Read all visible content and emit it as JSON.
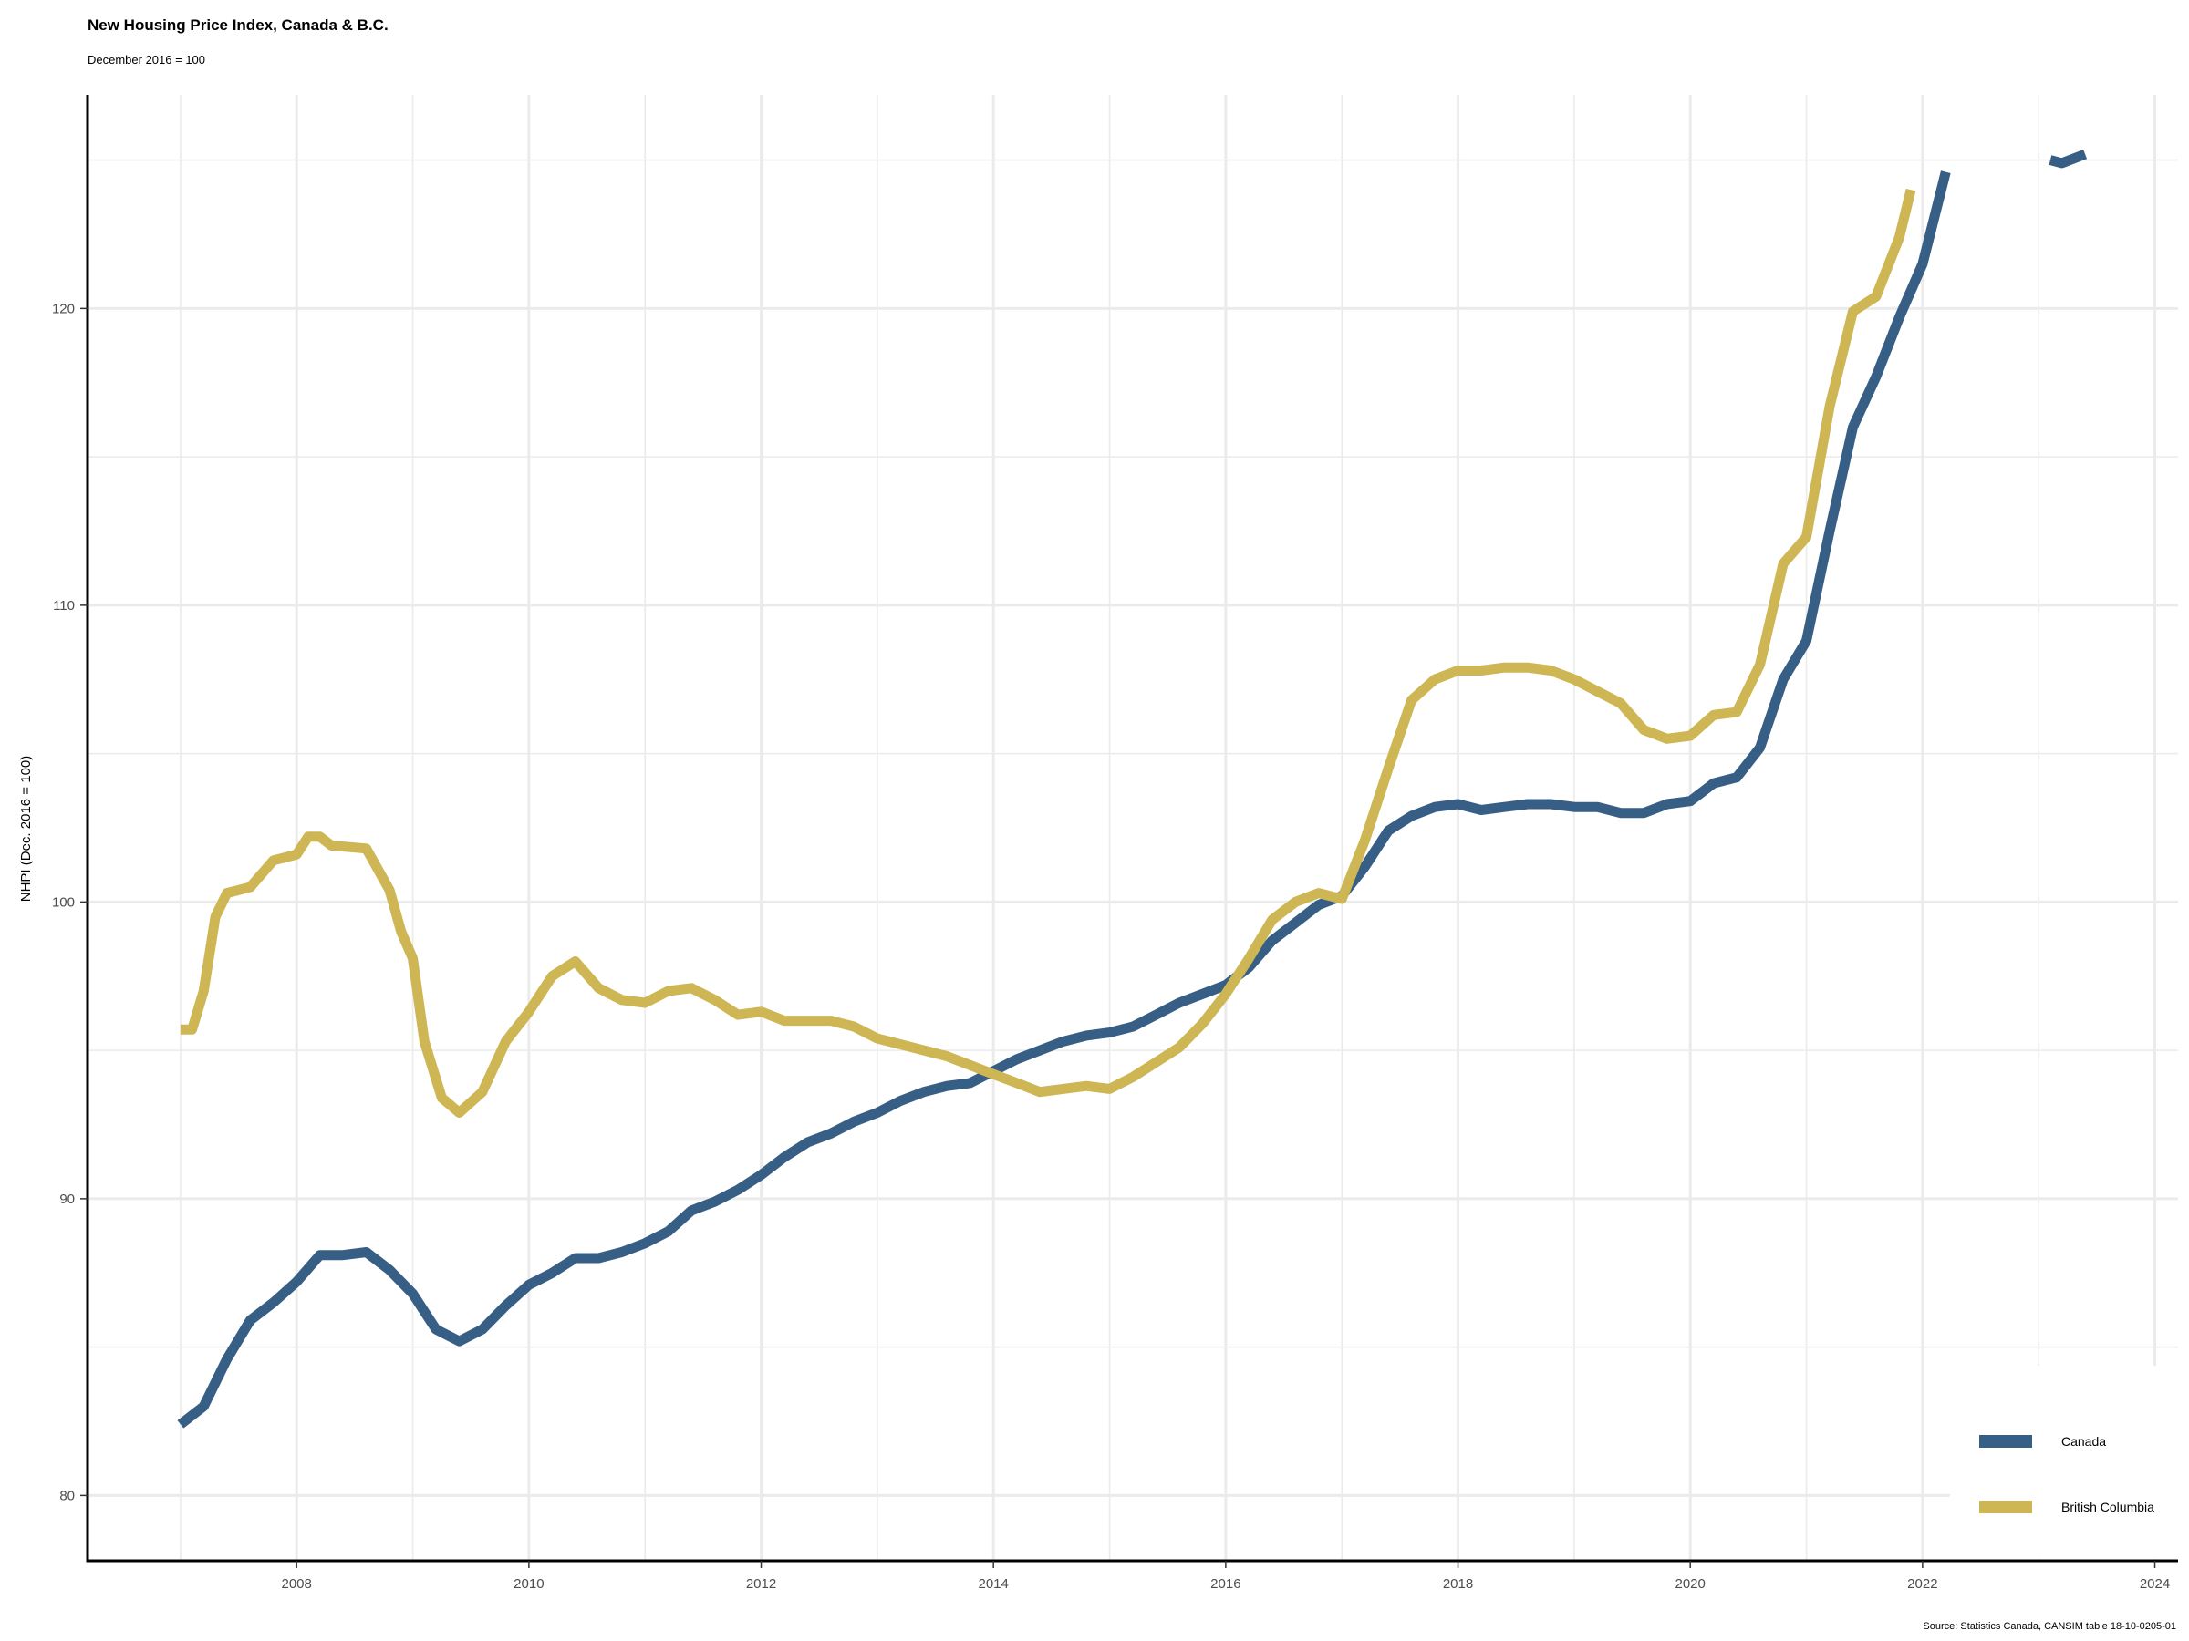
{
  "title": "New Housing Price Index, Canada & B.C.",
  "subtitle": "December 2016 = 100",
  "caption": "Source: Statistics Canada, CANSIM table 18-10-0205-01",
  "chart_data": {
    "type": "line",
    "title": "New Housing Price Index, Canada & B.C.",
    "subtitle": "December 2016 = 100",
    "xlabel": "",
    "ylabel": "NHPI (Dec. 2016 = 100)",
    "xlim": [
      2006.2,
      2024.2
    ],
    "ylim": [
      77.8,
      127.2
    ],
    "x_ticks": [
      2008,
      2010,
      2012,
      2014,
      2016,
      2018,
      2020,
      2022,
      2024
    ],
    "y_ticks": [
      80,
      90,
      100,
      110,
      120
    ],
    "grid": true,
    "legend_position": "bottom-right",
    "series": [
      {
        "name": "Canada",
        "color": "#375e84",
        "points": [
          [
            2007.0,
            82.4
          ],
          [
            2007.2,
            83.0
          ],
          [
            2007.4,
            84.6
          ],
          [
            2007.6,
            85.9
          ],
          [
            2007.8,
            86.5
          ],
          [
            2008.0,
            87.2
          ],
          [
            2008.2,
            88.1
          ],
          [
            2008.4,
            88.1
          ],
          [
            2008.6,
            88.2
          ],
          [
            2008.8,
            87.6
          ],
          [
            2009.0,
            86.8
          ],
          [
            2009.2,
            85.6
          ],
          [
            2009.4,
            85.2
          ],
          [
            2009.6,
            85.6
          ],
          [
            2009.8,
            86.4
          ],
          [
            2010.0,
            87.1
          ],
          [
            2010.2,
            87.5
          ],
          [
            2010.4,
            88.0
          ],
          [
            2010.6,
            88.0
          ],
          [
            2010.8,
            88.2
          ],
          [
            2011.0,
            88.5
          ],
          [
            2011.2,
            88.9
          ],
          [
            2011.4,
            89.6
          ],
          [
            2011.6,
            89.9
          ],
          [
            2011.8,
            90.3
          ],
          [
            2012.0,
            90.8
          ],
          [
            2012.2,
            91.4
          ],
          [
            2012.4,
            91.9
          ],
          [
            2012.6,
            92.2
          ],
          [
            2012.8,
            92.6
          ],
          [
            2013.0,
            92.9
          ],
          [
            2013.2,
            93.3
          ],
          [
            2013.4,
            93.6
          ],
          [
            2013.6,
            93.8
          ],
          [
            2013.8,
            93.9
          ],
          [
            2014.0,
            94.3
          ],
          [
            2014.2,
            94.7
          ],
          [
            2014.4,
            95.0
          ],
          [
            2014.6,
            95.3
          ],
          [
            2014.8,
            95.5
          ],
          [
            2015.0,
            95.6
          ],
          [
            2015.2,
            95.8
          ],
          [
            2015.4,
            96.2
          ],
          [
            2015.6,
            96.6
          ],
          [
            2015.8,
            96.9
          ],
          [
            2016.0,
            97.2
          ],
          [
            2016.2,
            97.8
          ],
          [
            2016.4,
            98.7
          ],
          [
            2016.6,
            99.3
          ],
          [
            2016.8,
            99.9
          ],
          [
            2017.0,
            100.2
          ],
          [
            2017.2,
            101.2
          ],
          [
            2017.4,
            102.4
          ],
          [
            2017.6,
            102.9
          ],
          [
            2017.8,
            103.2
          ],
          [
            2018.0,
            103.3
          ],
          [
            2018.2,
            103.1
          ],
          [
            2018.4,
            103.2
          ],
          [
            2018.6,
            103.3
          ],
          [
            2018.8,
            103.3
          ],
          [
            2019.0,
            103.2
          ],
          [
            2019.2,
            103.2
          ],
          [
            2019.4,
            103.0
          ],
          [
            2019.6,
            103.0
          ],
          [
            2019.8,
            103.3
          ],
          [
            2020.0,
            103.4
          ],
          [
            2020.2,
            104.0
          ],
          [
            2020.4,
            104.2
          ],
          [
            2020.6,
            105.2
          ],
          [
            2020.8,
            107.5
          ],
          [
            2021.0,
            108.8
          ],
          [
            2021.2,
            112.5
          ],
          [
            2021.4,
            116.0
          ],
          [
            2021.6,
            117.7
          ],
          [
            2021.8,
            119.7
          ],
          [
            2022.0,
            121.5
          ],
          [
            2022.2,
            124.6
          ]
        ]
      },
      {
        "name": "British Columbia",
        "color": "#cdb653",
        "points": [
          [
            2007.0,
            95.7
          ],
          [
            2007.1,
            95.7
          ],
          [
            2007.2,
            97.0
          ],
          [
            2007.3,
            99.5
          ],
          [
            2007.4,
            100.3
          ],
          [
            2007.6,
            100.5
          ],
          [
            2007.8,
            101.4
          ],
          [
            2008.0,
            101.6
          ],
          [
            2008.1,
            102.2
          ],
          [
            2008.2,
            102.2
          ],
          [
            2008.3,
            101.9
          ],
          [
            2008.6,
            101.8
          ],
          [
            2008.8,
            100.4
          ],
          [
            2008.9,
            99.0
          ],
          [
            2009.0,
            98.1
          ],
          [
            2009.1,
            95.3
          ],
          [
            2009.25,
            93.4
          ],
          [
            2009.4,
            92.9
          ],
          [
            2009.6,
            93.6
          ],
          [
            2009.8,
            95.3
          ],
          [
            2010.0,
            96.3
          ],
          [
            2010.2,
            97.5
          ],
          [
            2010.4,
            98.0
          ],
          [
            2010.6,
            97.1
          ],
          [
            2010.8,
            96.7
          ],
          [
            2011.0,
            96.6
          ],
          [
            2011.2,
            97.0
          ],
          [
            2011.4,
            97.1
          ],
          [
            2011.6,
            96.7
          ],
          [
            2011.8,
            96.2
          ],
          [
            2012.0,
            96.3
          ],
          [
            2012.2,
            96.0
          ],
          [
            2012.4,
            96.0
          ],
          [
            2012.6,
            96.0
          ],
          [
            2012.8,
            95.8
          ],
          [
            2013.0,
            95.4
          ],
          [
            2013.2,
            95.2
          ],
          [
            2013.4,
            95.0
          ],
          [
            2013.6,
            94.8
          ],
          [
            2013.8,
            94.5
          ],
          [
            2014.0,
            94.2
          ],
          [
            2014.2,
            93.9
          ],
          [
            2014.4,
            93.6
          ],
          [
            2014.6,
            93.7
          ],
          [
            2014.8,
            93.8
          ],
          [
            2015.0,
            93.7
          ],
          [
            2015.2,
            94.1
          ],
          [
            2015.4,
            94.6
          ],
          [
            2015.6,
            95.1
          ],
          [
            2015.8,
            95.9
          ],
          [
            2016.0,
            96.9
          ],
          [
            2016.2,
            98.1
          ],
          [
            2016.4,
            99.4
          ],
          [
            2016.6,
            100.0
          ],
          [
            2016.8,
            100.3
          ],
          [
            2017.0,
            100.1
          ],
          [
            2017.2,
            102.1
          ],
          [
            2017.4,
            104.5
          ],
          [
            2017.6,
            106.8
          ],
          [
            2017.8,
            107.5
          ],
          [
            2018.0,
            107.8
          ],
          [
            2018.2,
            107.8
          ],
          [
            2018.4,
            107.9
          ],
          [
            2018.6,
            107.9
          ],
          [
            2018.8,
            107.8
          ],
          [
            2019.0,
            107.5
          ],
          [
            2019.2,
            107.1
          ],
          [
            2019.4,
            106.7
          ],
          [
            2019.6,
            105.8
          ],
          [
            2019.8,
            105.5
          ],
          [
            2020.0,
            105.6
          ],
          [
            2020.2,
            106.3
          ],
          [
            2020.4,
            106.4
          ],
          [
            2020.6,
            108.0
          ],
          [
            2020.8,
            111.4
          ],
          [
            2021.0,
            112.3
          ],
          [
            2021.2,
            116.7
          ],
          [
            2021.4,
            119.9
          ],
          [
            2021.6,
            120.4
          ],
          [
            2021.8,
            122.4
          ],
          [
            2021.9,
            124.0
          ]
        ]
      },
      {
        "name": "Canada",
        "color": "#375e84",
        "points": [
          [
            2023.1,
            125.0
          ],
          [
            2023.2,
            124.9
          ],
          [
            2023.4,
            125.2
          ]
        ]
      }
    ]
  }
}
